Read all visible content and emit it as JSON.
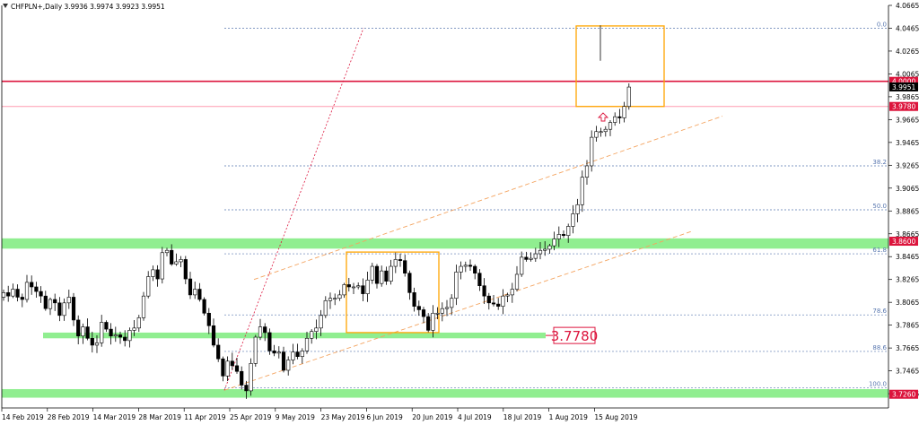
{
  "header": {
    "symbol": "CHFPLN+,Daily",
    "ohlc": "3.9936 3.9974 3.9923 3.9951"
  },
  "colors": {
    "green_zone": "#90ee90",
    "orange": "#ffa500",
    "red": "#dc143c",
    "channel": "#f4a460",
    "fib": "#5a78b0",
    "bg": "#ffffff"
  },
  "chart_data": {
    "type": "candlestick",
    "title": "CHFPLN+,Daily",
    "ylim": [
      3.714,
      4.0665
    ],
    "y_ticks": [
      "4.0665",
      "4.0465",
      "4.0265",
      "4.0065",
      "3.9865",
      "3.9665",
      "3.9465",
      "3.9265",
      "3.9065",
      "3.8865",
      "3.8665",
      "3.8465",
      "3.8265",
      "3.8065",
      "3.7865",
      "3.7665",
      "3.7465",
      "3.7265"
    ],
    "x_ticks": [
      "14 Feb 2019",
      "28 Feb 2019",
      "14 Mar 2019",
      "28 Mar 2019",
      "11 Apr 2019",
      "25 Apr 2019",
      "9 May 2019",
      "23 May 2019",
      "6 Jun 2019",
      "20 Jun 2019",
      "4 Jul 2019",
      "18 Jul 2019",
      "1 Aug 2019",
      "15 Aug 2019"
    ],
    "bars_count": 135,
    "last_price_label": "3.9951",
    "horizontal_levels": [
      {
        "label": "4.0000",
        "value": 4.0,
        "color": "#dc143c"
      },
      {
        "label": "3.9780",
        "value": 3.978,
        "color": "#ff9bb0"
      },
      {
        "label": "3.8600",
        "value": 3.86,
        "color": "#90ee90"
      },
      {
        "label": "3.7260",
        "value": 3.726,
        "color": "#90ee90"
      }
    ],
    "annotation": "3.7780",
    "fibonacci": {
      "labels": [
        "0.0",
        "38.2",
        "50.0",
        "61.8",
        "78.6",
        "88.6",
        "100.0"
      ],
      "values": [
        4.0465,
        3.926,
        3.8875,
        3.849,
        3.7955,
        3.7635,
        3.7315
      ]
    },
    "closes": [
      3.815,
      3.812,
      3.818,
      3.811,
      3.809,
      3.824,
      3.82,
      3.816,
      3.812,
      3.801,
      3.809,
      3.806,
      3.795,
      3.806,
      3.811,
      3.791,
      3.777,
      3.785,
      3.775,
      3.769,
      3.771,
      3.789,
      3.783,
      3.777,
      3.778,
      3.776,
      3.773,
      3.782,
      3.784,
      3.793,
      3.812,
      3.829,
      3.835,
      3.827,
      3.85,
      3.852,
      3.84,
      3.842,
      3.844,
      3.827,
      3.813,
      3.818,
      3.809,
      3.797,
      3.786,
      3.769,
      3.757,
      3.742,
      3.755,
      3.751,
      3.746,
      3.734,
      3.729,
      3.753,
      3.776,
      3.785,
      3.78,
      3.764,
      3.762,
      3.763,
      3.747,
      3.756,
      3.763,
      3.759,
      3.764,
      3.775,
      3.781,
      3.784,
      3.795,
      3.808,
      3.81,
      3.81,
      3.813,
      3.822,
      3.82,
      3.82,
      3.821,
      3.814,
      3.826,
      3.838,
      3.823,
      3.834,
      3.825,
      3.838,
      3.844,
      3.843,
      3.832,
      3.815,
      3.803,
      3.8,
      3.794,
      3.782,
      3.797,
      3.797,
      3.801,
      3.802,
      3.81,
      3.833,
      3.838,
      3.839,
      3.838,
      3.832,
      3.821,
      3.812,
      3.806,
      3.805,
      3.803,
      3.812,
      3.813,
      3.818,
      3.831,
      3.846,
      3.844,
      3.845,
      3.849,
      3.852,
      3.853,
      3.856,
      3.862,
      3.866,
      3.865,
      3.873,
      3.884,
      3.892,
      3.916,
      3.926,
      3.951,
      3.956,
      3.956,
      3.958,
      3.964,
      3.969,
      3.968,
      3.978,
      3.995
    ]
  }
}
